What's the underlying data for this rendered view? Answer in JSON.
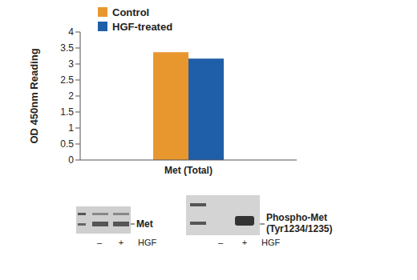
{
  "chart_data": {
    "type": "bar",
    "categories": [
      "Met (Total)"
    ],
    "series": [
      {
        "name": "Control",
        "color": "#e8972f",
        "values": [
          3.37
        ]
      },
      {
        "name": "HGF-treated",
        "color": "#1f5ea8",
        "values": [
          3.17
        ]
      }
    ],
    "y_label": "OD 450nm Reading",
    "ylim": [
      0,
      4
    ],
    "yticks": [
      0,
      0.5,
      1,
      1.5,
      2,
      2.5,
      3,
      3.5,
      4
    ],
    "legend": "top-left",
    "grid": false
  },
  "blots": [
    {
      "label": "Met",
      "lanes": [
        "–",
        "+"
      ],
      "treatment": "HGF"
    },
    {
      "label": "Phospho-Met (Tyr1234/1235)",
      "lanes": [
        "–",
        "+"
      ],
      "treatment": "HGF"
    }
  ]
}
